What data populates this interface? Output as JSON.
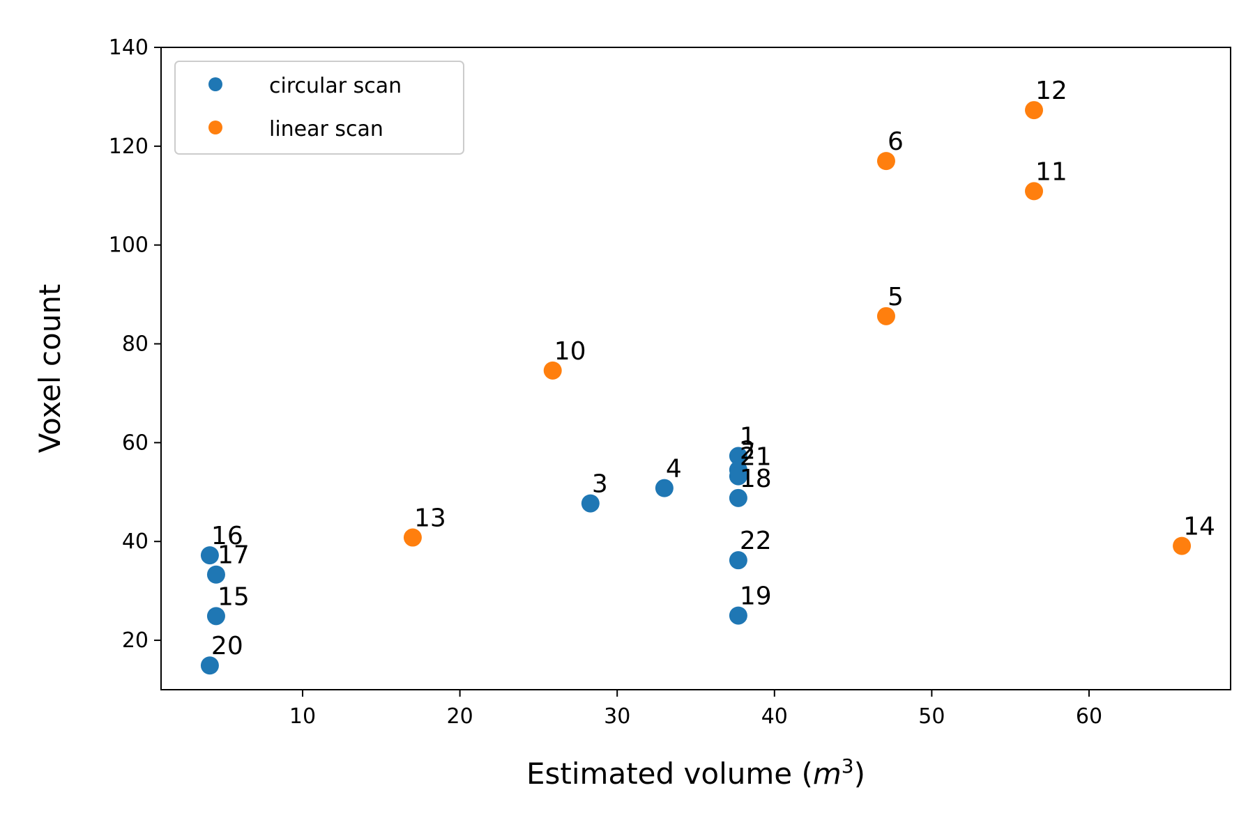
{
  "chart_data": {
    "type": "scatter",
    "xlabel": "Estimated volume (m³)",
    "xlabel_base": "Estimated volume (",
    "xlabel_var": "m",
    "xlabel_sup": "3",
    "xlabel_end": ")",
    "ylabel": "Voxel count",
    "xlim": [
      1,
      69
    ],
    "ylim": [
      10,
      140
    ],
    "x_ticks": [
      10,
      20,
      30,
      40,
      50,
      60
    ],
    "y_ticks": [
      20,
      40,
      60,
      80,
      100,
      120,
      140
    ],
    "legend_position": "top-left",
    "grid": false,
    "series": [
      {
        "name": "circular scan",
        "color": "#1f77b4",
        "points": [
          {
            "label": "1",
            "x": 37.7,
            "y": 57.3
          },
          {
            "label": "2",
            "x": 37.7,
            "y": 54.5
          },
          {
            "label": "21",
            "x": 37.7,
            "y": 53.2
          },
          {
            "label": "18",
            "x": 37.7,
            "y": 48.8
          },
          {
            "label": "22",
            "x": 37.7,
            "y": 36.2
          },
          {
            "label": "19",
            "x": 37.7,
            "y": 25.0
          },
          {
            "label": "3",
            "x": 28.3,
            "y": 47.7
          },
          {
            "label": "4",
            "x": 33.0,
            "y": 50.8
          },
          {
            "label": "16",
            "x": 4.1,
            "y": 37.2
          },
          {
            "label": "17",
            "x": 4.5,
            "y": 33.3
          },
          {
            "label": "15",
            "x": 4.5,
            "y": 24.9
          },
          {
            "label": "20",
            "x": 4.1,
            "y": 14.9
          }
        ]
      },
      {
        "name": "linear scan",
        "color": "#ff7f0e",
        "points": [
          {
            "label": "12",
            "x": 56.5,
            "y": 127.3
          },
          {
            "label": "6",
            "x": 47.1,
            "y": 117.0
          },
          {
            "label": "11",
            "x": 56.5,
            "y": 110.9
          },
          {
            "label": "5",
            "x": 47.1,
            "y": 85.6
          },
          {
            "label": "10",
            "x": 25.9,
            "y": 74.6
          },
          {
            "label": "13",
            "x": 17.0,
            "y": 40.8
          },
          {
            "label": "14",
            "x": 65.9,
            "y": 39.1
          }
        ]
      }
    ]
  }
}
